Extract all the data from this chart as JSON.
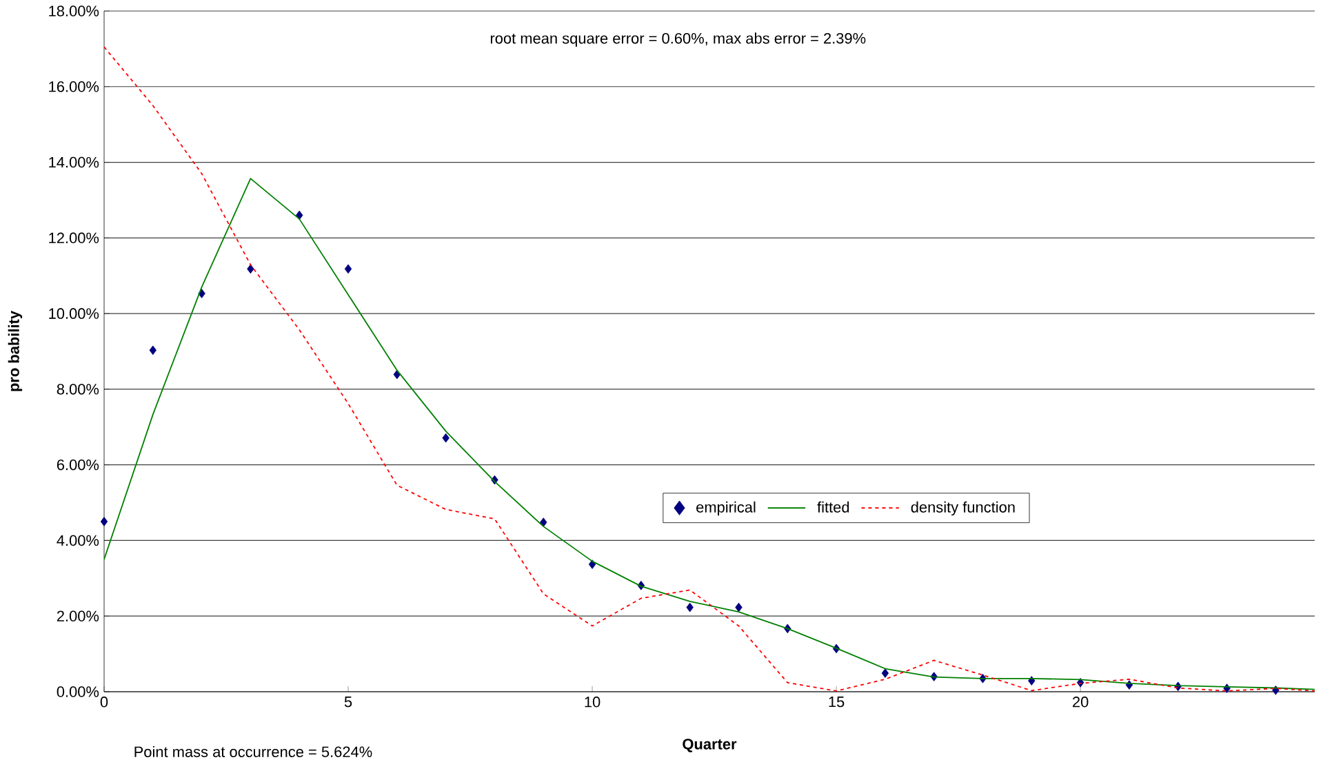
{
  "chart_data": {
    "type": "line",
    "xlabel": "Quarter",
    "ylabel": "pro bability",
    "annotations": [
      "root mean square error = 0.60%, max abs error = 2.39%",
      "Point mass at occurrence = 5.624%"
    ],
    "xlim": [
      0,
      24.8
    ],
    "xticks": [
      0,
      5,
      10,
      15,
      20
    ],
    "ylim": [
      0,
      18
    ],
    "yticks": [
      {
        "value": 0,
        "label": "0.00%"
      },
      {
        "value": 2,
        "label": "2.00%"
      },
      {
        "value": 4,
        "label": "4.00%"
      },
      {
        "value": 6,
        "label": "6.00%"
      },
      {
        "value": 8,
        "label": "8.00%"
      },
      {
        "value": 10,
        "label": "10.00%"
      },
      {
        "value": 12,
        "label": "12.00%"
      },
      {
        "value": 14,
        "label": "14.00%"
      },
      {
        "value": 16,
        "label": "16.00%"
      },
      {
        "value": 18,
        "label": "18.00%"
      }
    ],
    "grid": "y",
    "legend": "center",
    "series": [
      {
        "name": "empirical",
        "type": "scatter",
        "marker": "diamond",
        "color": "#000080",
        "x": [
          0,
          1,
          2,
          3,
          4,
          5,
          6,
          7,
          8,
          9,
          10,
          11,
          12,
          13,
          14,
          15,
          16,
          17,
          18,
          19,
          20,
          21,
          22,
          23,
          24
        ],
        "values": [
          4.5,
          9.03,
          10.53,
          11.18,
          12.6,
          11.18,
          8.39,
          6.71,
          5.6,
          4.48,
          3.37,
          2.81,
          2.23,
          2.23,
          1.67,
          1.14,
          0.49,
          0.4,
          0.35,
          0.29,
          0.24,
          0.18,
          0.14,
          0.09,
          0.04
        ]
      },
      {
        "name": "fitted",
        "line_style": "solid",
        "color": "#008000",
        "x": [
          0,
          1,
          2,
          3,
          4,
          5,
          6,
          7,
          8,
          9,
          10,
          11,
          12,
          13,
          14,
          15,
          16,
          17,
          18,
          19,
          20,
          21,
          22,
          23,
          24,
          24.8
        ],
        "values": [
          3.5,
          7.33,
          10.7,
          13.57,
          12.5,
          10.5,
          8.5,
          6.89,
          5.56,
          4.37,
          3.45,
          2.79,
          2.39,
          2.11,
          1.67,
          1.15,
          0.61,
          0.39,
          0.35,
          0.35,
          0.32,
          0.22,
          0.16,
          0.13,
          0.1,
          0.06
        ]
      },
      {
        "name": "density function",
        "line_style": "dotted",
        "color": "#ff0000",
        "x": [
          0,
          1,
          2,
          3,
          4,
          5,
          6,
          7,
          8,
          9,
          10,
          11,
          12,
          13,
          14,
          15,
          16,
          17,
          18,
          19,
          20,
          21,
          22,
          23,
          24,
          24.8
        ],
        "values": [
          17.05,
          15.5,
          13.7,
          11.29,
          9.57,
          7.62,
          5.46,
          4.82,
          4.57,
          2.59,
          1.74,
          2.47,
          2.69,
          1.74,
          0.24,
          0.02,
          0.33,
          0.83,
          0.44,
          0.03,
          0.22,
          0.33,
          0.1,
          0.02,
          0.09,
          0.02
        ]
      }
    ]
  }
}
